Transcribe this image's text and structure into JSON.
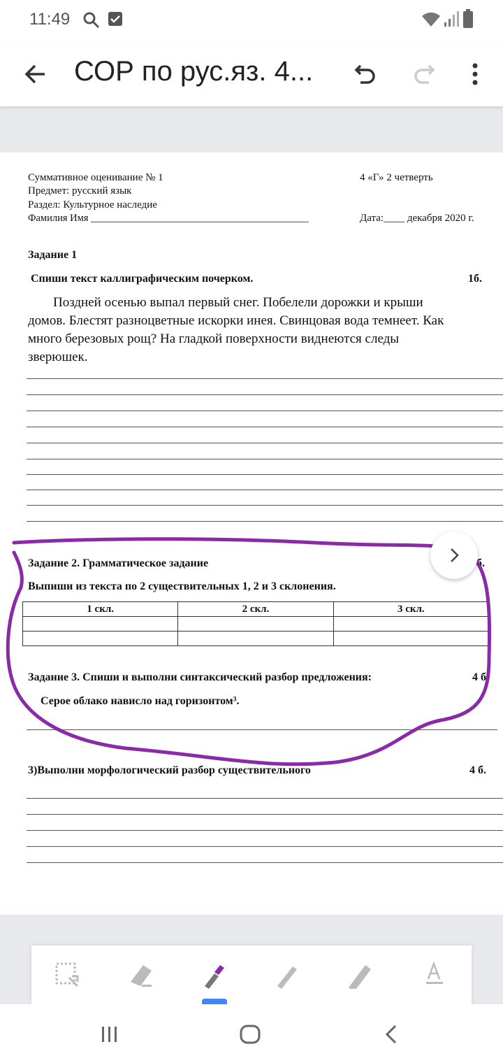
{
  "status_bar": {
    "time": "11:49",
    "icons": [
      "search-icon",
      "checkbox-icon",
      "wifi-icon",
      "signal-icon",
      "battery-icon"
    ]
  },
  "app_bar": {
    "title": "СОР  по рус.яз. 4...",
    "icons": [
      "back-arrow-icon",
      "undo-icon",
      "redo-icon",
      "more-vert-icon"
    ]
  },
  "document": {
    "header": {
      "line1": "Суммативное оценивание № 1",
      "class_term": "4 «Г»  2 четверть",
      "line2": "Предмет: русский язык",
      "line3": "Раздел: Культурное наследие",
      "line4": "Фамилия  Имя ___________________________________________",
      "date": "Дата:____ декабря 2020 г."
    },
    "task1": {
      "title": "Задание 1",
      "instruction": "Спиши текст каллиграфическим почерком.",
      "points": "1б.",
      "text": [
        "Поздней осенью выпал  первый снег. Побелели дорожки и  крыши",
        "домов. Блестят  разноцветные  искорки  инея. Свинцовая вода темнеет. Как",
        "много  березовых рощ? На гладкой поверхности  виднеются  следы",
        "зверюшек."
      ]
    },
    "task2": {
      "title": "Задание 2. Грамматическое задание",
      "points": "б.",
      "instruction": "Выпиши из текста по 2 существительных 1, 2 и 3 склонения.",
      "table_headers": [
        "1 скл.",
        "2 скл.",
        "3 скл."
      ]
    },
    "task3": {
      "title": "Задание 3. Спиши и выполни синтаксический разбор предложения:",
      "points": "4 б.",
      "sentence": "Серое  облако  нависло  над горизонтом³."
    },
    "task4": {
      "title": "3)Выполни  морфологический  разбор существительного",
      "points": "4 б."
    }
  },
  "annotation": {
    "color": "#8a2aa8"
  },
  "toolbar": {
    "tools": [
      "lasso-select-icon",
      "eraser-icon",
      "pen-icon",
      "pencil-icon",
      "highlighter-icon",
      "text-icon"
    ],
    "selected": "pen-icon",
    "accent": "#4285f4"
  },
  "nav_bar": {
    "icons": [
      "recents-icon",
      "home-icon",
      "back-icon"
    ]
  }
}
